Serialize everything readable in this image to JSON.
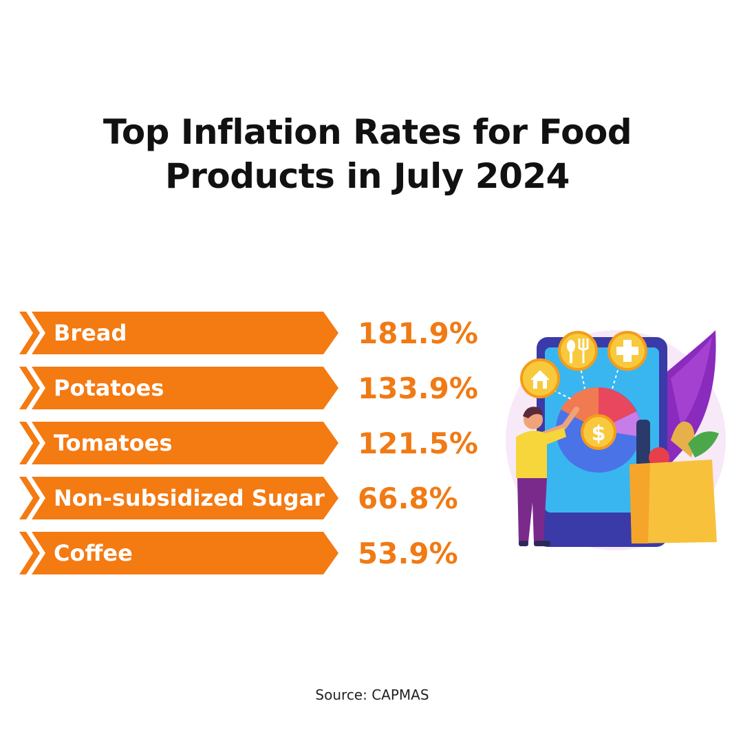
{
  "title_line1": "Top Inflation Rates for Food",
  "title_line2": "Products in July 2024",
  "source": "Source: CAPMAS",
  "colors": {
    "bar": "#f47a12",
    "bar_dark": "#e86a0a",
    "value_text": "#f07a14"
  },
  "illustration_icons": [
    "house-icon",
    "fork-knife-icon",
    "plus-icon",
    "dollar-icon",
    "grocery-bag-icon",
    "person-figure"
  ],
  "chart_data": {
    "type": "bar",
    "orientation": "horizontal",
    "categories": [
      "Bread",
      "Potatoes",
      "Tomatoes",
      "Non-subsidized Sugar",
      "Coffee"
    ],
    "values": [
      181.9,
      133.9,
      121.5,
      66.8,
      53.9
    ],
    "value_labels": [
      "181.9%",
      "133.9%",
      "121.5%",
      "66.8%",
      "53.9%"
    ],
    "unit": "%"
  }
}
